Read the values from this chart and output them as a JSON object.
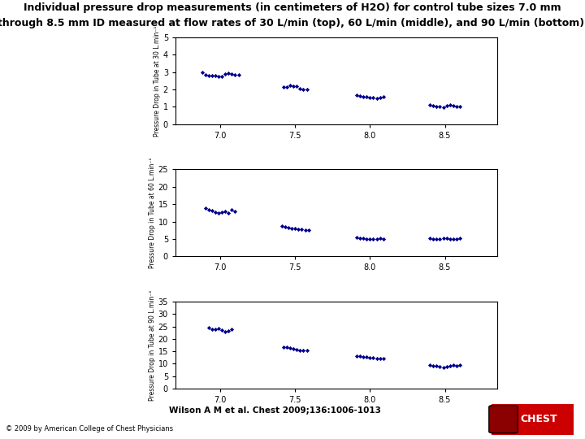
{
  "title_line1": "Individual pressure drop measurements (in centimeters of H2O) for control tube sizes 7.0 mm",
  "title_line2": "through 8.5 mm ID measured at flow rates of 30 L/min (top), 60 L/min (middle), and 90 L/min (bottom).",
  "citation": "Wilson A M et al. Chest 2009;136:1006-1013",
  "footer": "© 2009 by American College of Chest Physicians",
  "panels": [
    {
      "ylabel": "Pressure Drop in Tube at 30 L.min⁻¹",
      "ylim": [
        0,
        5
      ],
      "yticks": [
        0,
        1,
        2,
        3,
        4,
        5
      ],
      "groups": [
        {
          "x_center": 7.0,
          "values": [
            3.0,
            2.85,
            2.82,
            2.8,
            2.78,
            2.75,
            2.73,
            2.88,
            2.93,
            2.91,
            2.86,
            2.83
          ]
        },
        {
          "x_center": 7.5,
          "values": [
            2.15,
            2.12,
            2.22,
            2.2,
            2.18,
            2.05,
            2.02,
            2.0
          ]
        },
        {
          "x_center": 8.0,
          "values": [
            1.68,
            1.62,
            1.6,
            1.58,
            1.55,
            1.53,
            1.5,
            1.52,
            1.56
          ]
        },
        {
          "x_center": 8.5,
          "values": [
            1.12,
            1.05,
            1.02,
            1.0,
            0.98,
            1.08,
            1.1,
            1.06,
            1.04,
            1.01
          ]
        }
      ]
    },
    {
      "ylabel": "Pressure Drop in Tube at 60 L.min⁻¹",
      "ylim": [
        0,
        25
      ],
      "yticks": [
        0,
        5,
        10,
        15,
        20,
        25
      ],
      "groups": [
        {
          "x_center": 7.0,
          "values": [
            13.8,
            13.5,
            13.2,
            12.8,
            12.5,
            12.7,
            13.0,
            12.4,
            13.3,
            12.9
          ]
        },
        {
          "x_center": 7.5,
          "values": [
            8.8,
            8.5,
            8.3,
            8.1,
            8.0,
            7.9,
            7.8,
            7.6,
            7.5
          ]
        },
        {
          "x_center": 8.0,
          "values": [
            5.4,
            5.3,
            5.2,
            5.1,
            5.0,
            4.9,
            5.05,
            5.15,
            5.05
          ]
        },
        {
          "x_center": 8.5,
          "values": [
            5.3,
            5.1,
            5.0,
            4.9,
            5.15,
            5.2,
            5.05,
            5.0,
            5.1,
            5.3
          ]
        }
      ]
    },
    {
      "ylabel": "Pressure Drop in Tube at 90 L.min⁻¹",
      "ylim": [
        0,
        35
      ],
      "yticks": [
        0,
        5,
        10,
        15,
        20,
        25,
        30,
        35
      ],
      "groups": [
        {
          "x_center": 7.0,
          "values": [
            24.5,
            24.0,
            23.8,
            24.2,
            23.5,
            23.0,
            23.3,
            23.8
          ]
        },
        {
          "x_center": 7.5,
          "values": [
            16.8,
            16.5,
            16.3,
            16.0,
            15.8,
            15.5,
            15.2,
            15.5
          ]
        },
        {
          "x_center": 8.0,
          "values": [
            13.2,
            13.0,
            12.8,
            12.7,
            12.5,
            12.3,
            12.1,
            12.0,
            12.2
          ]
        },
        {
          "x_center": 8.5,
          "values": [
            9.5,
            9.2,
            9.0,
            8.8,
            8.6,
            8.7,
            9.0,
            9.3,
            9.1,
            9.4
          ]
        }
      ]
    }
  ],
  "xticks": [
    7.0,
    7.5,
    8.0,
    8.5
  ],
  "xlim": [
    6.7,
    8.85
  ],
  "dot_color": "#00008B",
  "dot_size": 7,
  "dot_marker": "D",
  "spread": 0.022,
  "bg_color": "#ffffff"
}
